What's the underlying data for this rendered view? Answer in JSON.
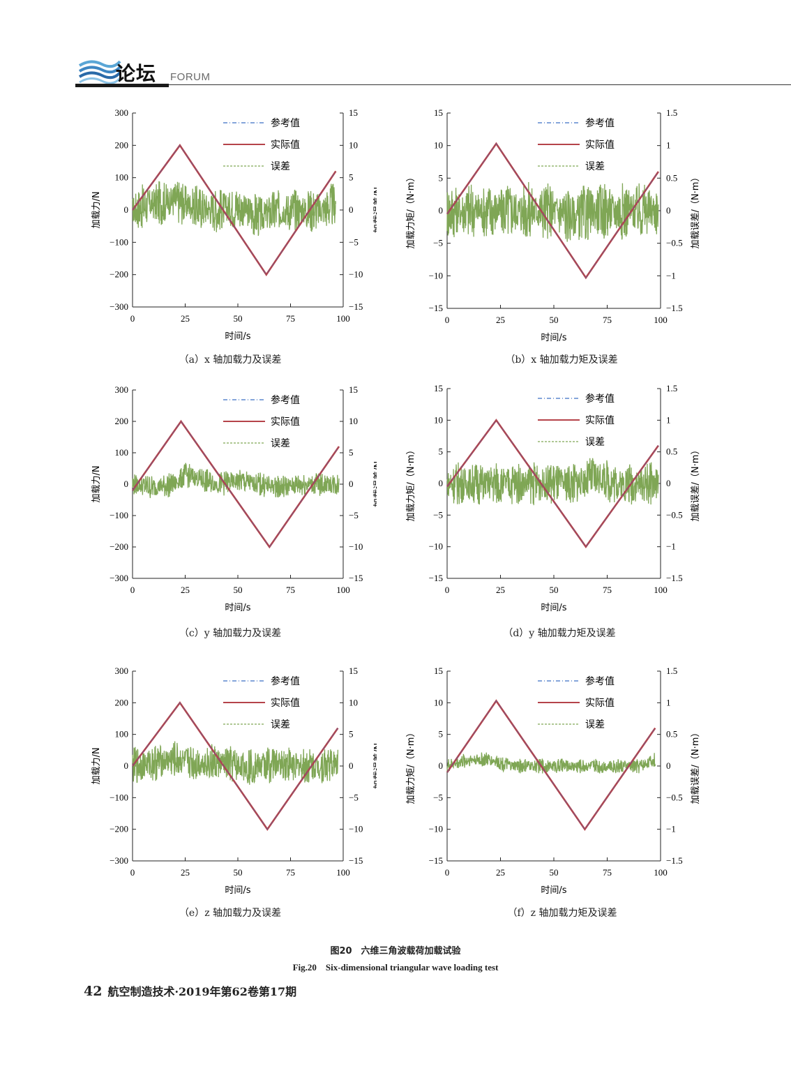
{
  "header": {
    "logo_cn": "论坛",
    "logo_en": "FORUM"
  },
  "colors": {
    "reference": "#3a6fc4",
    "actual": "#b5434a",
    "error": "#7fa655"
  },
  "figure": {
    "caption_cn": "图20　六维三角波载荷加载试验",
    "caption_en": "Fig.20　Six-dimensional triangular wave loading test"
  },
  "footer": {
    "page": "42",
    "journal": "航空制造技术·2019年第62卷第17期"
  },
  "chart_data": [
    {
      "type": "line",
      "caption": "（a）x 轴加载力及误差",
      "xlabel": "时间/s",
      "ylabel_left": "加载力/N",
      "ylabel_right": "加载误差/N",
      "xlim": [
        0,
        100
      ],
      "ylim_left": [
        -300,
        300
      ],
      "ylim_right": [
        -15,
        15
      ],
      "xticks": [
        "0",
        "25",
        "50",
        "75",
        "100"
      ],
      "yticks_left": [
        "300",
        "200",
        "100",
        "0",
        "−100",
        "−200",
        "−300"
      ],
      "yticks_right": [
        "15",
        "10",
        "5",
        "0",
        "−5",
        "−10",
        "−15"
      ],
      "legend": [
        "参考值",
        "实际值",
        "误差"
      ],
      "series": [
        {
          "name": "参考值",
          "axis": "left",
          "x": [
            0,
            22.5,
            63.5,
            96.5
          ],
          "y": [
            0,
            200,
            -200,
            120
          ]
        },
        {
          "name": "实际值",
          "axis": "left",
          "x": [
            0,
            22.5,
            63.5,
            96.5
          ],
          "y": [
            0,
            200,
            -200,
            120
          ]
        },
        {
          "name": "误差",
          "axis": "right",
          "x": [
            0,
            10,
            20,
            30,
            40,
            50,
            60,
            70,
            80,
            90,
            96.5
          ],
          "y": [
            0,
            1,
            1.5,
            0.5,
            0,
            0.5,
            -1,
            0,
            0,
            0,
            1
          ],
          "amplitude": 3.5
        }
      ]
    },
    {
      "type": "line",
      "caption": "（b）x 轴加载力矩及误差",
      "xlabel": "时间/s",
      "ylabel_left": "加载力矩/（N·m）",
      "ylabel_right": "加载误差/（N·m）",
      "xlim": [
        0,
        100
      ],
      "ylim_left": [
        -15,
        15
      ],
      "ylim_right": [
        -1.5,
        1.5
      ],
      "xticks": [
        "0",
        "25",
        "50",
        "75",
        "100"
      ],
      "yticks_left": [
        "15",
        "10",
        "5",
        "0",
        "−5",
        "−10",
        "−15"
      ],
      "yticks_right": [
        "1.5",
        "1",
        "0.5",
        "0",
        "−0.5",
        "−1",
        "−1.5"
      ],
      "legend": [
        "参考值",
        "实际值",
        "误差"
      ],
      "series": [
        {
          "name": "参考值",
          "axis": "left",
          "x": [
            0,
            23,
            65,
            99
          ],
          "y": [
            -0.5,
            10.3,
            -10.3,
            6
          ]
        },
        {
          "name": "实际值",
          "axis": "left",
          "x": [
            0,
            23,
            65,
            99
          ],
          "y": [
            -0.5,
            10.3,
            -10.3,
            6
          ]
        },
        {
          "name": "误差",
          "axis": "right",
          "x": [
            0,
            10,
            20,
            25,
            30,
            40,
            50,
            60,
            70,
            80,
            90,
            99
          ],
          "y": [
            0,
            0,
            0,
            0,
            0,
            0,
            0,
            -0.1,
            0,
            0,
            0,
            0
          ],
          "amplitude": 0.45
        }
      ]
    },
    {
      "type": "line",
      "caption": "（c）y 轴加载力及误差",
      "xlabel": "时间/s",
      "ylabel_left": "加载力/N",
      "ylabel_right": "加载误差/N",
      "xlim": [
        0,
        100
      ],
      "ylim_left": [
        -300,
        300
      ],
      "ylim_right": [
        -15,
        15
      ],
      "xticks": [
        "0",
        "25",
        "50",
        "75",
        "100"
      ],
      "yticks_left": [
        "300",
        "200",
        "100",
        "0",
        "−100",
        "−200",
        "−300"
      ],
      "yticks_right": [
        "15",
        "10",
        "5",
        "0",
        "−5",
        "−10",
        "−15"
      ],
      "legend": [
        "参考值",
        "实际值",
        "误差"
      ],
      "series": [
        {
          "name": "参考值",
          "axis": "left",
          "x": [
            0,
            23,
            65,
            98
          ],
          "y": [
            -20,
            200,
            -200,
            120
          ]
        },
        {
          "name": "实际值",
          "axis": "left",
          "x": [
            0,
            23,
            65,
            98
          ],
          "y": [
            -20,
            200,
            -200,
            120
          ]
        },
        {
          "name": "误差",
          "axis": "right",
          "x": [
            0,
            10,
            20,
            25,
            30,
            40,
            50,
            60,
            70,
            80,
            90,
            98
          ],
          "y": [
            0,
            -0.5,
            0,
            1.5,
            1,
            0,
            0.5,
            0,
            -0.5,
            0,
            0,
            0
          ],
          "amplitude": 2
        }
      ]
    },
    {
      "type": "line",
      "caption": "（d）y 轴加载力矩及误差",
      "xlabel": "时间/s",
      "ylabel_left": "加载力矩/（N·m）",
      "ylabel_right": "加载误差/（N·m）",
      "xlim": [
        0,
        100
      ],
      "ylim_left": [
        -15,
        15
      ],
      "ylim_right": [
        -1.5,
        1.5
      ],
      "xticks": [
        "0",
        "25",
        "50",
        "75",
        "100"
      ],
      "yticks_left": [
        "15",
        "10",
        "5",
        "0",
        "−5",
        "−10",
        "−15"
      ],
      "yticks_right": [
        "1.5",
        "1",
        "0.5",
        "0",
        "−0.5",
        "−1",
        "−1.5"
      ],
      "legend": [
        "参考值",
        "实际值",
        "误差"
      ],
      "series": [
        {
          "name": "参考值",
          "axis": "left",
          "x": [
            0,
            23,
            65,
            99
          ],
          "y": [
            -0.5,
            10,
            -10,
            6
          ]
        },
        {
          "name": "实际值",
          "axis": "left",
          "x": [
            0,
            23,
            65,
            99
          ],
          "y": [
            -0.5,
            10,
            -10,
            6
          ]
        },
        {
          "name": "误差",
          "axis": "right",
          "x": [
            0,
            10,
            20,
            30,
            40,
            50,
            60,
            70,
            80,
            90,
            99
          ],
          "y": [
            0,
            0,
            0,
            0,
            0,
            0,
            0,
            0.1,
            0,
            0,
            0
          ],
          "amplitude": 0.35
        }
      ]
    },
    {
      "type": "line",
      "caption": "（e）z 轴加载力及误差",
      "xlabel": "时间/s",
      "ylabel_left": "加载力/N",
      "ylabel_right": "加载误差/N",
      "xlim": [
        0,
        100
      ],
      "ylim_left": [
        -300,
        300
      ],
      "ylim_right": [
        -15,
        15
      ],
      "xticks": [
        "0",
        "25",
        "50",
        "75",
        "100"
      ],
      "yticks_left": [
        "300",
        "200",
        "100",
        "0",
        "−100",
        "−200",
        "−300"
      ],
      "yticks_right": [
        "15",
        "10",
        "5",
        "0",
        "−5",
        "−10",
        "−15"
      ],
      "legend": [
        "参考值",
        "实际值",
        "误差"
      ],
      "series": [
        {
          "name": "参考值",
          "axis": "left",
          "x": [
            0,
            22.5,
            64,
            97.5
          ],
          "y": [
            0,
            200,
            -200,
            120
          ]
        },
        {
          "name": "实际值",
          "axis": "left",
          "x": [
            0,
            22.5,
            64,
            97.5
          ],
          "y": [
            0,
            200,
            -200,
            120
          ]
        },
        {
          "name": "误差",
          "axis": "right",
          "x": [
            0,
            10,
            20,
            30,
            40,
            50,
            60,
            70,
            80,
            90,
            97.5
          ],
          "y": [
            0,
            0.5,
            1,
            0.5,
            0.5,
            0,
            0,
            0.5,
            0,
            0,
            0.5
          ],
          "amplitude": 3
        }
      ]
    },
    {
      "type": "line",
      "caption": "（f）z 轴加载力矩及误差",
      "xlabel": "时间/s",
      "ylabel_left": "加载力矩/（N·m）",
      "ylabel_right": "加载误差/（N·m）",
      "xlim": [
        0,
        100
      ],
      "ylim_left": [
        -15,
        15
      ],
      "ylim_right": [
        -1.5,
        1.5
      ],
      "xticks": [
        "0",
        "25",
        "50",
        "75",
        "100"
      ],
      "yticks_left": [
        "15",
        "10",
        "5",
        "0",
        "−5",
        "−10",
        "−15"
      ],
      "yticks_right": [
        "1.5",
        "1",
        "0.5",
        "0",
        "−0.5",
        "−1",
        "−1.5"
      ],
      "legend": [
        "参考值",
        "实际值",
        "误差"
      ],
      "series": [
        {
          "name": "参考值",
          "axis": "left",
          "x": [
            0,
            23,
            64.5,
            97.5
          ],
          "y": [
            -1,
            10.3,
            -10,
            6
          ]
        },
        {
          "name": "实际值",
          "axis": "left",
          "x": [
            0,
            23,
            64.5,
            97.5
          ],
          "y": [
            -1,
            10.3,
            -10,
            6
          ]
        },
        {
          "name": "误差",
          "axis": "right",
          "x": [
            0,
            10,
            20,
            30,
            40,
            50,
            60,
            70,
            80,
            90,
            97.5
          ],
          "y": [
            0,
            0.1,
            0.1,
            0,
            0,
            0,
            0,
            0,
            0,
            0,
            0.1
          ],
          "amplitude": 0.12
        }
      ]
    }
  ]
}
